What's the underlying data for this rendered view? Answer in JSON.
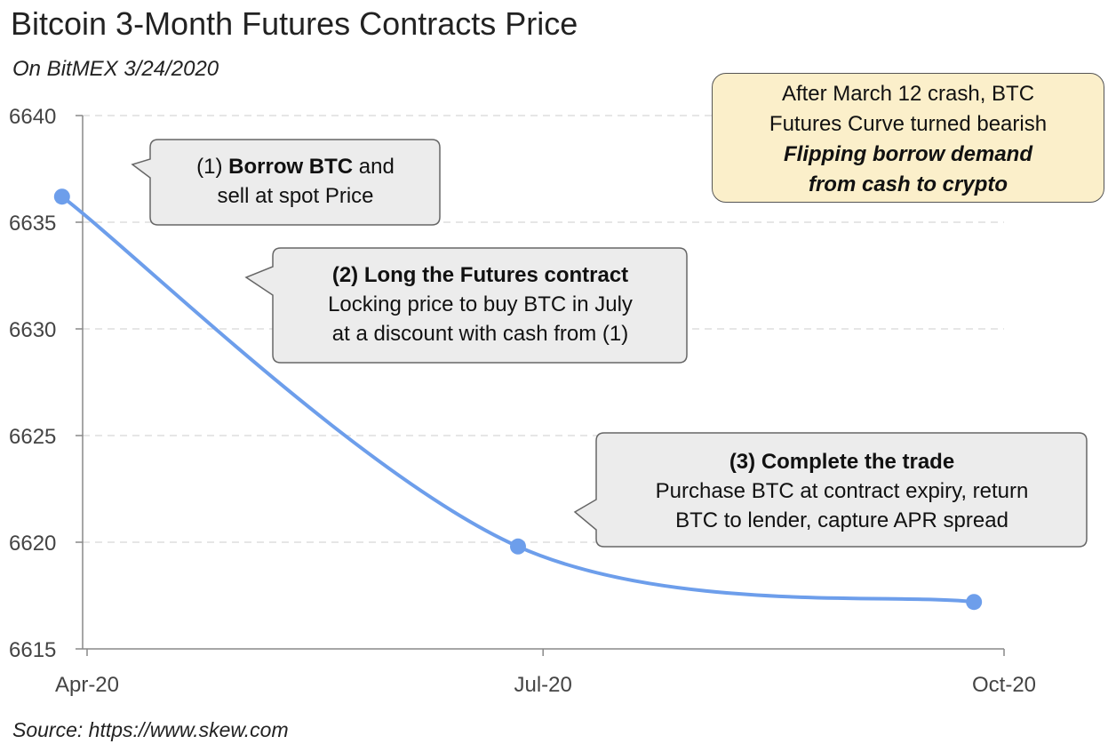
{
  "header": {
    "title": "Bitcoin 3-Month Futures Contracts Price",
    "subtitle": "On BitMEX 3/24/2020"
  },
  "footer": {
    "source": "Source: https://www.skew.com"
  },
  "callouts": [
    {
      "bold_text": "Borrow BTC",
      "prefix": "(1) ",
      "suffix": " and",
      "line2": "sell at spot Price"
    },
    {
      "heading": "(2) Long the Futures contract",
      "line2": "Locking price to buy BTC in July",
      "line3": "at a discount with cash from (1)"
    },
    {
      "heading": "(3) Complete the trade",
      "line2": "Purchase BTC at contract expiry, return",
      "line3": "BTC to lender, capture APR spread"
    }
  ],
  "note": {
    "line1": "After March 12 crash, BTC",
    "line2": "Futures Curve turned bearish",
    "line3": "Flipping borrow demand",
    "line4": "from cash to crypto",
    "background": "#fbefca"
  },
  "chart_data": {
    "type": "line",
    "title": "Bitcoin 3-Month Futures Contracts Price",
    "subtitle": "On BitMEX 3/24/2020",
    "x_ticks": [
      "Apr-20",
      "Jul-20",
      "Oct-20"
    ],
    "y_ticks": [
      6615,
      6620,
      6625,
      6630,
      6635,
      6640
    ],
    "ylim": [
      6615,
      6640
    ],
    "series": [
      {
        "color": "#6d9eeb",
        "points": [
          {
            "x": "2020-03-27",
            "y": 6636.2
          },
          {
            "x": "2020-06-26",
            "y": 6619.8
          },
          {
            "x": "2020-09-25",
            "y": 6617.2
          }
        ]
      }
    ],
    "grid": "horizontal dashed",
    "annotations": [
      "(1) Borrow BTC and sell at spot Price",
      "(2) Long the Futures contract — Locking price to buy BTC in July at a discount with cash from (1)",
      "(3) Complete the trade — Purchase BTC at contract expiry, return BTC to lender, capture APR spread",
      "After March 12 crash, BTC Futures Curve turned bearish — Flipping borrow demand from cash to crypto"
    ]
  }
}
